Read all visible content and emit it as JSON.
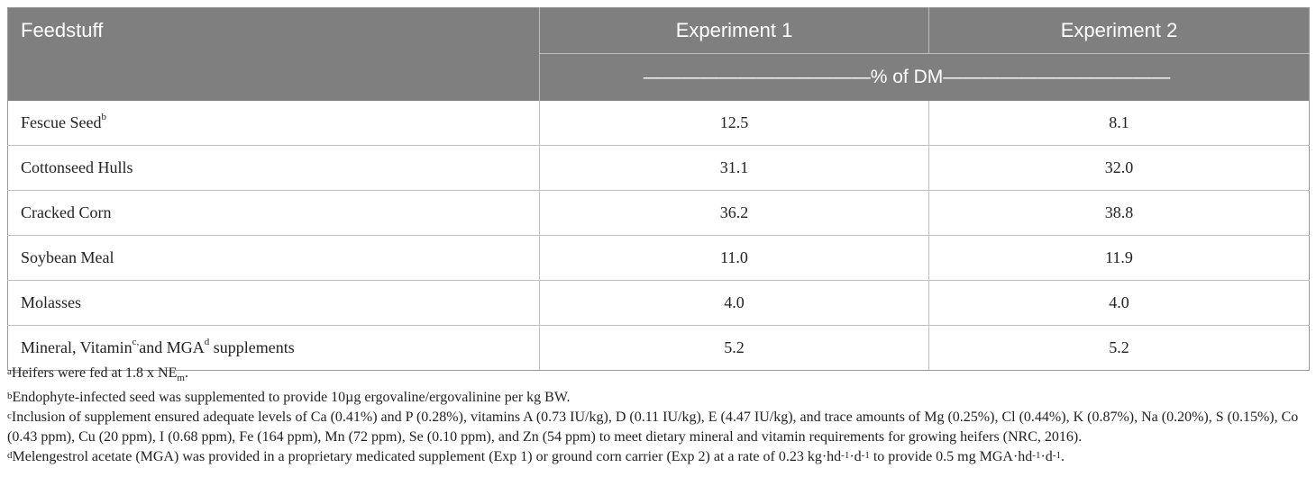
{
  "table": {
    "header": {
      "feedstuff_label": "Feedstuff",
      "exp1_label": "Experiment 1",
      "exp2_label": "Experiment 2",
      "unit_label": "————————————% of DM————————————"
    },
    "rows": [
      {
        "name": "Fescue Seed",
        "sup": "b",
        "exp1": "12.5",
        "exp2": "8.1"
      },
      {
        "name": "Cottonseed Hulls",
        "exp1": "31.1",
        "exp2": "32.0"
      },
      {
        "name": "Cracked Corn",
        "exp1": "36.2",
        "exp2": "38.8"
      },
      {
        "name": "Soybean Meal",
        "exp1": "11.0",
        "exp2": "11.9"
      },
      {
        "name": "Molasses",
        "exp1": "4.0",
        "exp2": "4.0"
      },
      {
        "name_part1": "Mineral, Vitamin",
        "sup1": "c,",
        "name_part2": "and MGA",
        "sup2": "d",
        "name_part3": " supplements",
        "exp1": "5.2",
        "exp2": "5.2"
      }
    ]
  },
  "footnotes": {
    "a": {
      "mark": "a",
      "text1": "Heifers were fed at 1.8 x NE",
      "sub": "m",
      "text2": "."
    },
    "b": {
      "mark": "b",
      "text": "Endophyte-infected seed was supplemented to provide 10µg ergovaline/ergovalinine per kg BW."
    },
    "c": {
      "mark": "c",
      "text": "Inclusion of supplement ensured adequate levels of Ca (0.41%) and P (0.28%), vitamins A (0.73 IU/kg), D (0.11 IU/kg), E (4.47 IU/kg), and trace amounts of Mg (0.25%), Cl (0.44%), K (0.87%), Na (0.20%), S (0.15%), Co (0.43 ppm), Cu (20 ppm), I (0.68 ppm), Fe (164 ppm), Mn (72 ppm), Se (0.10 ppm), and Zn (54 ppm) to meet dietary mineral and vitamin requirements for growing heifers (NRC, 2016)."
    },
    "d": {
      "mark": "d",
      "text1": "Melengestrol acetate (MGA) was provided in a proprietary medicated supplement (Exp 1) or ground corn carrier (Exp 2) at a rate of 0.23 kg·hd",
      "sup1": "-1",
      "text2": "·d",
      "sup2": "-1",
      "text3": " to provide 0.5 mg MGA·hd",
      "sup3": "-1",
      "text4": "·d",
      "sup4": "-1",
      "text5": "."
    }
  }
}
